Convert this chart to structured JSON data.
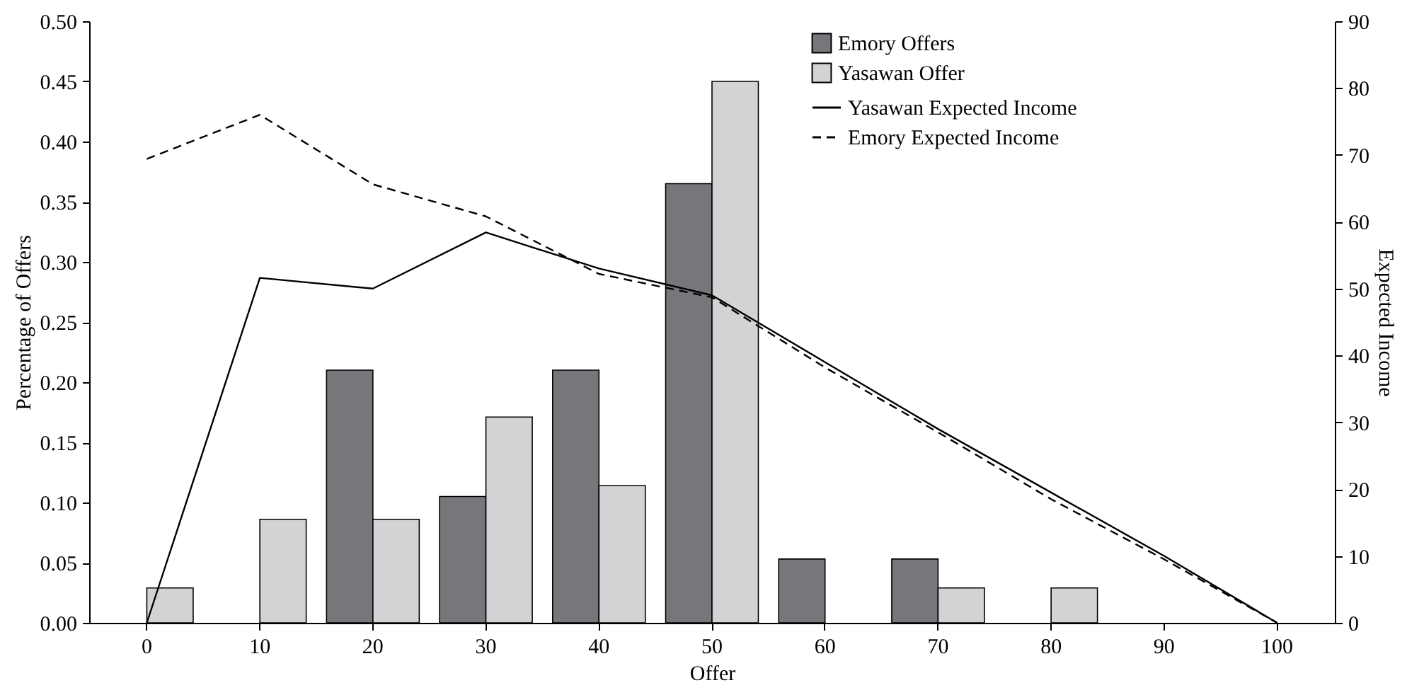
{
  "chart_data": {
    "type": "bar",
    "xlabel": "Offer",
    "ylabel": "Percentage of Offers",
    "y2label": "Expected Income",
    "categories": [
      "0",
      "10",
      "20",
      "30",
      "40",
      "50",
      "60",
      "70",
      "80",
      "90",
      "100"
    ],
    "series": [
      {
        "name": "Emory Offers",
        "color": "#77777b",
        "values": [
          0,
          0,
          0.21,
          0.105,
          0.21,
          0.365,
          0.053,
          0.053,
          0,
          0,
          0
        ]
      },
      {
        "name": "Yasawan Offer",
        "color": "#d3d3d5",
        "values": [
          0.029,
          0.086,
          0.086,
          0.171,
          0.114,
          0.45,
          0,
          0.029,
          0.029,
          0,
          0
        ]
      },
      {
        "name": "Yasawan Expected Income",
        "type": "line",
        "axis": "y2",
        "color": "#000000",
        "line_style": "solid",
        "values": [
          0,
          51.6,
          50,
          58.4,
          53,
          49,
          39,
          29,
          19.5,
          10,
          0
        ]
      },
      {
        "name": "Emory Expected Income",
        "type": "line",
        "axis": "y2",
        "color": "#000000",
        "line_style": "dashed",
        "values": [
          69.4,
          76,
          65.6,
          60.8,
          52.2,
          48.7,
          38.2,
          28.5,
          18.5,
          9.5,
          0
        ]
      }
    ],
    "ylim": [
      0,
      0.5
    ],
    "yticks": [
      {
        "value": 0,
        "label": "0.00"
      },
      {
        "value": 0.05,
        "label": "0.05"
      },
      {
        "value": 0.1,
        "label": "0.10"
      },
      {
        "value": 0.15,
        "label": "0.15"
      },
      {
        "value": 0.2,
        "label": "0.20"
      },
      {
        "value": 0.25,
        "label": "0.25"
      },
      {
        "value": 0.3,
        "label": "0.30"
      },
      {
        "value": 0.35,
        "label": "0.35"
      },
      {
        "value": 0.4,
        "label": "0.40"
      },
      {
        "value": 0.45,
        "label": "0.45"
      },
      {
        "value": 0.5,
        "label": "0.50"
      }
    ],
    "y2lim": [
      0,
      90
    ],
    "y2ticks": [
      0,
      10,
      20,
      30,
      40,
      50,
      60,
      70,
      80,
      90
    ],
    "grid": false,
    "legend": "top right"
  }
}
